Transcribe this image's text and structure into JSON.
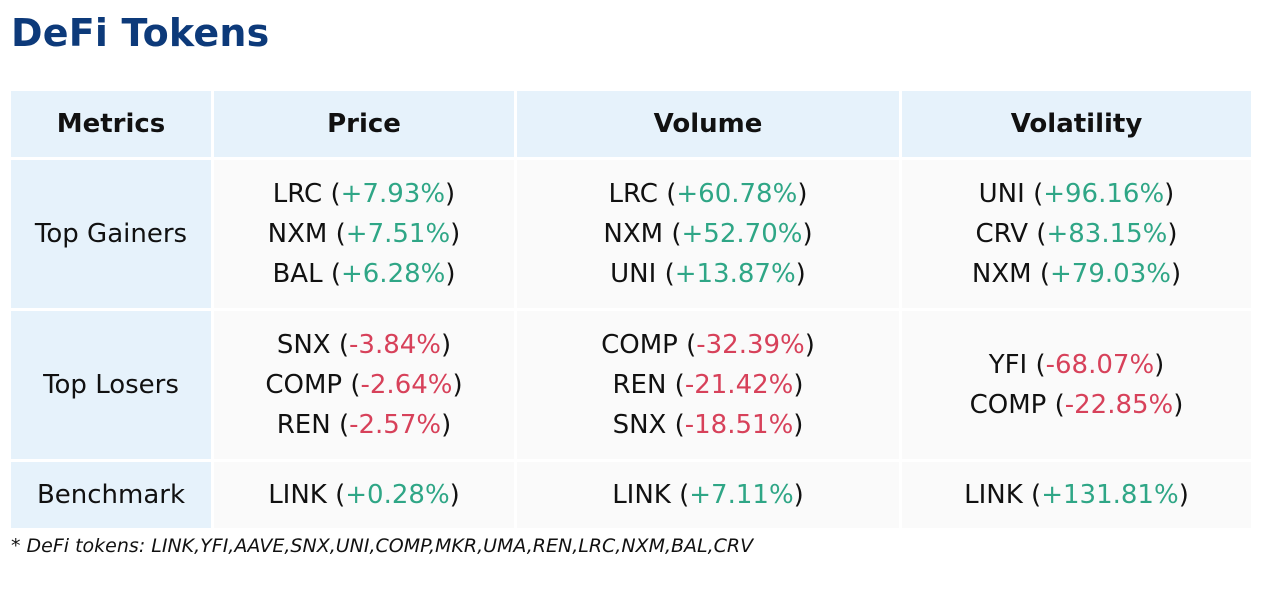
{
  "title": "DeFi Tokens",
  "colors": {
    "title": "#0d3a7a",
    "header_bg": "#e6f2fb",
    "cell_bg": "#fafafa",
    "positive": "#2fa686",
    "negative": "#d7415a"
  },
  "table": {
    "headers": [
      "Metrics",
      "Price",
      "Volume",
      "Volatility"
    ],
    "rows": [
      {
        "label": "Top Gainers",
        "cells": [
          [
            {
              "token": "LRC",
              "change": "+7.93%"
            },
            {
              "token": "NXM",
              "change": "+7.51%"
            },
            {
              "token": "BAL",
              "change": "+6.28%"
            }
          ],
          [
            {
              "token": "LRC",
              "change": "+60.78%"
            },
            {
              "token": "NXM",
              "change": "+52.70%"
            },
            {
              "token": "UNI",
              "change": "+13.87%"
            }
          ],
          [
            {
              "token": "UNI",
              "change": "+96.16%"
            },
            {
              "token": "CRV",
              "change": "+83.15%"
            },
            {
              "token": "NXM",
              "change": "+79.03%"
            }
          ]
        ]
      },
      {
        "label": "Top Losers",
        "cells": [
          [
            {
              "token": "SNX",
              "change": "-3.84%"
            },
            {
              "token": "COMP",
              "change": "-2.64%"
            },
            {
              "token": "REN",
              "change": "-2.57%"
            }
          ],
          [
            {
              "token": "COMP",
              "change": "-32.39%"
            },
            {
              "token": "REN",
              "change": "-21.42%"
            },
            {
              "token": "SNX",
              "change": "-18.51%"
            }
          ],
          [
            {
              "token": "YFI",
              "change": "-68.07%"
            },
            {
              "token": "COMP",
              "change": "-22.85%"
            }
          ]
        ]
      },
      {
        "label": "Benchmark",
        "cells": [
          [
            {
              "token": "LINK",
              "change": "+0.28%"
            }
          ],
          [
            {
              "token": "LINK",
              "change": "+7.11%"
            }
          ],
          [
            {
              "token": "LINK",
              "change": "+131.81%"
            }
          ]
        ]
      }
    ]
  },
  "footnote": "* DeFi tokens: LINK,YFI,AAVE,SNX,UNI,COMP,MKR,UMA,REN,LRC,NXM,BAL,CRV"
}
